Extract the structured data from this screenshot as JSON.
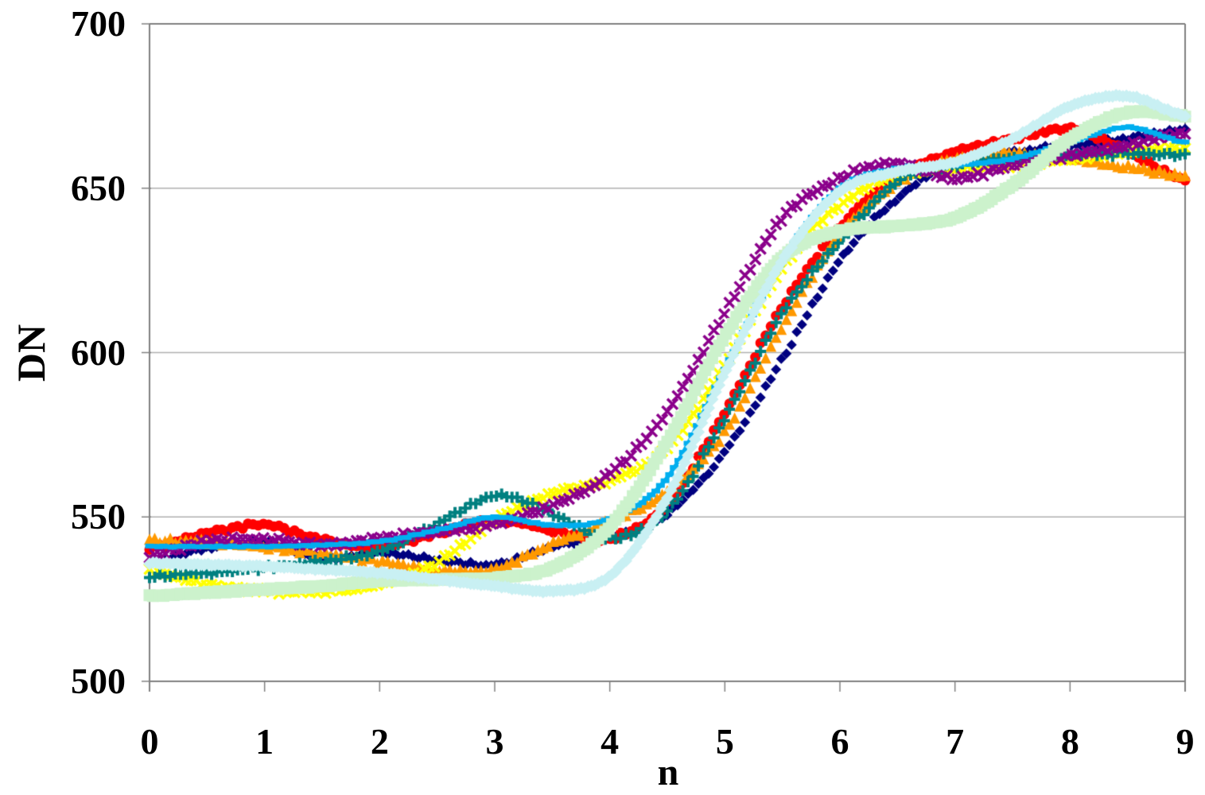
{
  "chart_data": {
    "type": "line",
    "title": "",
    "xlabel": "n",
    "ylabel": "DN",
    "xlim": [
      0,
      9
    ],
    "ylim": [
      500,
      700
    ],
    "xticks": [
      0,
      1,
      2,
      3,
      4,
      5,
      6,
      7,
      8,
      9
    ],
    "yticks": [
      500,
      550,
      600,
      650,
      700
    ],
    "grid": "horizontal gridlines at 550, 600, 650",
    "legend": "none",
    "colors": {
      "background": "#ffffff",
      "axis": "#808080",
      "gridline": "#b0b0b0",
      "text": "#000000"
    },
    "x": [
      0,
      0.5,
      1,
      1.5,
      2,
      2.5,
      3,
      3.5,
      4,
      4.5,
      5,
      5.5,
      6,
      6.5,
      7,
      7.5,
      8,
      8.5,
      9
    ],
    "series": [
      {
        "name": "navy-diamonds",
        "color": "#000080",
        "marker": "diamond",
        "size": 13,
        "values": [
          536.5,
          540.5,
          542.5,
          537.5,
          539,
          537,
          535.5,
          541,
          543.5,
          551,
          570,
          598,
          628,
          647,
          658,
          661,
          663,
          665,
          668
        ]
      },
      {
        "name": "red-circles",
        "color": "#FF0000",
        "marker": "circle",
        "size": 13,
        "values": [
          540.5,
          545,
          547.5,
          543,
          541,
          545,
          549,
          546,
          543.5,
          554,
          582,
          614,
          638,
          654,
          661,
          665,
          668,
          661,
          652.5
        ]
      },
      {
        "name": "orange-triangles",
        "color": "#FF9900",
        "marker": "triangle",
        "size": 14,
        "values": [
          543,
          542.5,
          541,
          539,
          536.5,
          534,
          534.5,
          542,
          549,
          558,
          576,
          608,
          636,
          652,
          659,
          661,
          659,
          656.5,
          654
        ]
      },
      {
        "name": "yellow-x",
        "color": "#FFFF00",
        "marker": "x",
        "size": 13,
        "values": [
          533.5,
          529.5,
          527.5,
          527.5,
          529.5,
          536,
          549,
          557,
          561,
          571,
          596,
          626,
          645,
          654,
          656,
          657,
          659,
          661,
          662
        ]
      },
      {
        "name": "teal-plus",
        "color": "#008080",
        "marker": "plus",
        "size": 14,
        "values": [
          532,
          533,
          534.5,
          536.5,
          539.5,
          548,
          556.5,
          551,
          543.5,
          552,
          580,
          612,
          634,
          652,
          657,
          659,
          660,
          660.5,
          660
        ]
      },
      {
        "name": "purple-x",
        "color": "#8B008B",
        "marker": "x",
        "size": 13,
        "values": [
          538,
          542.5,
          543,
          541.5,
          543.5,
          545.5,
          548,
          553.5,
          563,
          582,
          612,
          641,
          653,
          657.5,
          653,
          657,
          660,
          663,
          667
        ]
      },
      {
        "name": "sky-blue-line",
        "color": "#00AEEF",
        "marker": "dash",
        "size": 11,
        "line": true,
        "values": [
          541,
          541,
          541,
          541.5,
          542.5,
          546,
          550,
          547.5,
          549.5,
          562,
          595,
          628,
          650,
          656,
          657,
          659,
          664,
          668.5,
          664
        ]
      },
      {
        "name": "light-green-band",
        "color": "#CCF2CC",
        "marker": "square",
        "size": 15,
        "values": [
          526,
          527,
          528,
          529,
          530.5,
          531,
          531.5,
          534.5,
          547,
          573,
          605,
          629,
          637,
          638.5,
          641,
          651,
          665,
          673,
          672
        ]
      },
      {
        "name": "pale-cyan-diamonds",
        "color": "#C9F0F3",
        "marker": "diamond",
        "size": 16,
        "values": [
          536,
          535.5,
          535,
          534,
          533,
          531,
          529,
          527.5,
          532,
          556,
          594,
          628,
          649,
          655,
          658,
          665,
          675,
          678,
          672
        ]
      }
    ]
  }
}
